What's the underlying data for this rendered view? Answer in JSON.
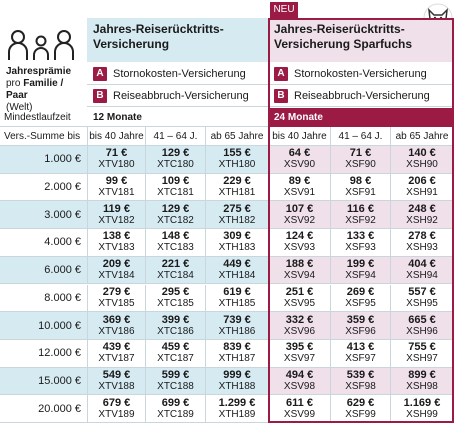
{
  "header": {
    "label_bold": "Jahresprämie",
    "label_pre": "pro",
    "label_bold2": "Familie / Paar",
    "label_post": "(Welt)"
  },
  "products": [
    {
      "title_lines": [
        "Jahres-Reiserücktritts-",
        "Versicherung"
      ]
    },
    {
      "badge": "NEU",
      "title_lines": [
        "Jahres-Reiserücktritts-",
        "Versicherung Sparfuchs"
      ]
    }
  ],
  "coverages": [
    {
      "letter": "A",
      "text": "Stornokosten-Versicherung"
    },
    {
      "letter": "B",
      "text": "Reiseabbruch-Versicherung"
    }
  ],
  "min_term": {
    "label": "Mindestlaufzeit",
    "values": [
      "12 Monate",
      "24 Monate"
    ]
  },
  "columns": {
    "label": "Vers.-Summe bis",
    "ages": [
      "bis 40 Jahre",
      "41 – 64 J.",
      "ab 65 Jahre",
      "bis 40 Jahre",
      "41 – 64 J.",
      "ab 65 Jahre"
    ]
  },
  "rows": [
    {
      "sum": "1.000 €",
      "cells": [
        [
          "71 €",
          "XTV180"
        ],
        [
          "129 €",
          "XTC180"
        ],
        [
          "155 €",
          "XTH180"
        ],
        [
          "64 €",
          "XSV90"
        ],
        [
          "71 €",
          "XSF90"
        ],
        [
          "140 €",
          "XSH90"
        ]
      ]
    },
    {
      "sum": "2.000 €",
      "cells": [
        [
          "99 €",
          "XTV181"
        ],
        [
          "109 €",
          "XTC181"
        ],
        [
          "229 €",
          "XTH181"
        ],
        [
          "89 €",
          "XSV91"
        ],
        [
          "98 €",
          "XSF91"
        ],
        [
          "206 €",
          "XSH91"
        ]
      ]
    },
    {
      "sum": "3.000 €",
      "cells": [
        [
          "119 €",
          "XTV182"
        ],
        [
          "129 €",
          "XTC182"
        ],
        [
          "275 €",
          "XTH182"
        ],
        [
          "107 €",
          "XSV92"
        ],
        [
          "116 €",
          "XSF92"
        ],
        [
          "248 €",
          "XSH92"
        ]
      ]
    },
    {
      "sum": "4.000 €",
      "cells": [
        [
          "138 €",
          "XTV183"
        ],
        [
          "148 €",
          "XTC183"
        ],
        [
          "309 €",
          "XTH183"
        ],
        [
          "124 €",
          "XSV93"
        ],
        [
          "133 €",
          "XSF93"
        ],
        [
          "278 €",
          "XSH93"
        ]
      ]
    },
    {
      "sum": "6.000 €",
      "cells": [
        [
          "209 €",
          "XTV184"
        ],
        [
          "221 €",
          "XTC184"
        ],
        [
          "449 €",
          "XTH184"
        ],
        [
          "188 €",
          "XSV94"
        ],
        [
          "199 €",
          "XSF94"
        ],
        [
          "404 €",
          "XSH94"
        ]
      ]
    },
    {
      "sum": "8.000 €",
      "cells": [
        [
          "279 €",
          "XTV185"
        ],
        [
          "295 €",
          "XTC185"
        ],
        [
          "619 €",
          "XTH185"
        ],
        [
          "251 €",
          "XSV95"
        ],
        [
          "269 €",
          "XSF95"
        ],
        [
          "557 €",
          "XSH95"
        ]
      ]
    },
    {
      "sum": "10.000 €",
      "cells": [
        [
          "369 €",
          "XTV186"
        ],
        [
          "399 €",
          "XTC186"
        ],
        [
          "739 €",
          "XTH186"
        ],
        [
          "332 €",
          "XSV96"
        ],
        [
          "359 €",
          "XSF96"
        ],
        [
          "665 €",
          "XSH96"
        ]
      ]
    },
    {
      "sum": "12.000 €",
      "cells": [
        [
          "439 €",
          "XTV187"
        ],
        [
          "459 €",
          "XTC187"
        ],
        [
          "839 €",
          "XTH187"
        ],
        [
          "395 €",
          "XSV97"
        ],
        [
          "413 €",
          "XSF97"
        ],
        [
          "755 €",
          "XSH97"
        ]
      ]
    },
    {
      "sum": "15.000 €",
      "cells": [
        [
          "549 €",
          "XTV188"
        ],
        [
          "599 €",
          "XTC188"
        ],
        [
          "999 €",
          "XTH188"
        ],
        [
          "494 €",
          "XSV98"
        ],
        [
          "539 €",
          "XSF98"
        ],
        [
          "899 €",
          "XSH98"
        ]
      ]
    },
    {
      "sum": "20.000 €",
      "cells": [
        [
          "679 €",
          "XTV189"
        ],
        [
          "699 €",
          "XTC189"
        ],
        [
          "1.299 €",
          "XTH189"
        ],
        [
          "611 €",
          "XSV99"
        ],
        [
          "629 €",
          "XSF99"
        ],
        [
          "1.169 €",
          "XSH99"
        ]
      ]
    }
  ]
}
